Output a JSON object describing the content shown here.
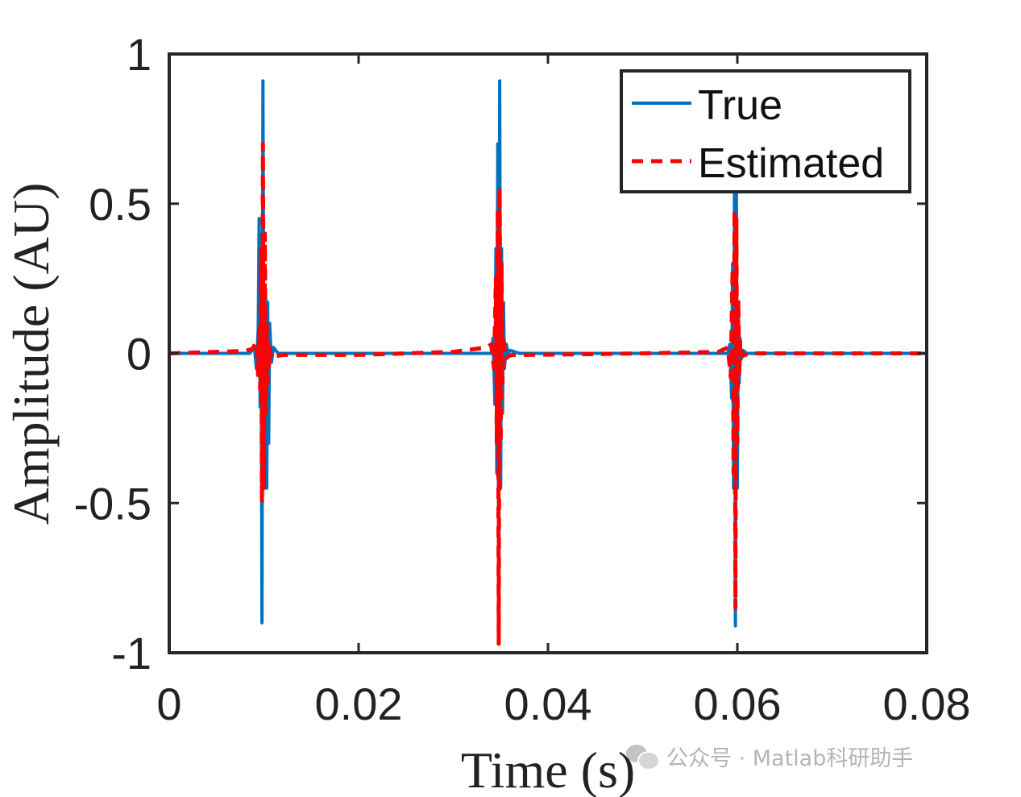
{
  "chart_data": {
    "type": "line",
    "title": "",
    "xlabel": "Time (s)",
    "ylabel": "Amplitude (AU)",
    "xlim": [
      0,
      0.08
    ],
    "ylim": [
      -1,
      1
    ],
    "x_ticks": [
      0,
      0.02,
      0.04,
      0.06,
      0.08
    ],
    "x_tick_labels": [
      "0",
      "0.02",
      "0.04",
      "0.06",
      "0.08"
    ],
    "y_ticks": [
      -1,
      -0.5,
      0,
      0.5,
      1
    ],
    "y_tick_labels": [
      "-1",
      "-0.5",
      "0",
      "0.5",
      "1"
    ],
    "grid": false,
    "legend_position": "top-right",
    "series": [
      {
        "name": "True",
        "color": "#0072BD",
        "style": "solid",
        "x": [
          0,
          0.0085,
          0.009,
          0.0092,
          0.0094,
          0.0095,
          0.0096,
          0.0097,
          0.0098,
          0.0099,
          0.01,
          0.0101,
          0.0102,
          0.0103,
          0.0104,
          0.0105,
          0.0106,
          0.0108,
          0.011,
          0.0115,
          0.0125,
          0.034,
          0.0342,
          0.0344,
          0.0345,
          0.0346,
          0.0347,
          0.0348,
          0.0349,
          0.035,
          0.0351,
          0.0352,
          0.0353,
          0.0354,
          0.0356,
          0.0358,
          0.036,
          0.037,
          0.059,
          0.0592,
          0.0594,
          0.0595,
          0.0596,
          0.0597,
          0.0598,
          0.0599,
          0.06,
          0.0601,
          0.0602,
          0.0603,
          0.0604,
          0.0606,
          0.061,
          0.062,
          0.08
        ],
        "y": [
          0,
          0,
          0.02,
          -0.05,
          0.08,
          0.45,
          -0.18,
          0.3,
          -0.9,
          0.91,
          -0.2,
          0.1,
          0.18,
          -0.45,
          0.17,
          -0.3,
          0.1,
          -0.03,
          0.02,
          0,
          0,
          0,
          0.05,
          -0.17,
          0.35,
          -0.4,
          0.7,
          -0.95,
          0.91,
          -0.45,
          0.35,
          -0.2,
          0.17,
          -0.05,
          0.03,
          0,
          0.01,
          0,
          0,
          0.03,
          -0.15,
          0.3,
          -0.45,
          0.6,
          -0.91,
          0.55,
          -0.45,
          0.17,
          -0.1,
          0.05,
          -0.02,
          0.01,
          0,
          0,
          0
        ]
      },
      {
        "name": "Estimated",
        "color": "#FF0000",
        "style": "dashed",
        "x": [
          0,
          0.005,
          0.008,
          0.0088,
          0.0092,
          0.0094,
          0.0095,
          0.0096,
          0.0097,
          0.0098,
          0.0099,
          0.01,
          0.0101,
          0.0102,
          0.0103,
          0.0104,
          0.0106,
          0.0108,
          0.0112,
          0.012,
          0.02,
          0.03,
          0.0335,
          0.034,
          0.0343,
          0.0345,
          0.0346,
          0.0347,
          0.0348,
          0.0349,
          0.035,
          0.0351,
          0.0352,
          0.0353,
          0.0355,
          0.0358,
          0.0362,
          0.038,
          0.05,
          0.058,
          0.059,
          0.0593,
          0.0595,
          0.0596,
          0.0597,
          0.0598,
          0.0599,
          0.06,
          0.0601,
          0.0602,
          0.0603,
          0.0605,
          0.0608,
          0.0615,
          0.07,
          0.08
        ],
        "y": [
          0,
          0.005,
          0.008,
          0.015,
          0.04,
          -0.08,
          0.08,
          -0.12,
          0.35,
          -0.5,
          0.7,
          -0.45,
          0.4,
          -0.2,
          0.1,
          -0.1,
          0.02,
          -0.02,
          -0.01,
          -0.005,
          -0.005,
          0.005,
          0.02,
          0.03,
          -0.05,
          0.25,
          -0.3,
          0.48,
          -0.97,
          0.55,
          -0.3,
          0.3,
          -0.1,
          0.06,
          -0.02,
          -0.01,
          -0.005,
          -0.005,
          0,
          0.005,
          0.02,
          -0.08,
          0.28,
          -0.4,
          0.48,
          -0.85,
          0.45,
          -0.3,
          0.18,
          -0.08,
          0.04,
          -0.01,
          -0.005,
          0,
          0,
          0
        ]
      }
    ]
  },
  "watermark": {
    "icon": "wechat-icon",
    "text": "公众号 · Matlab科研助手"
  }
}
